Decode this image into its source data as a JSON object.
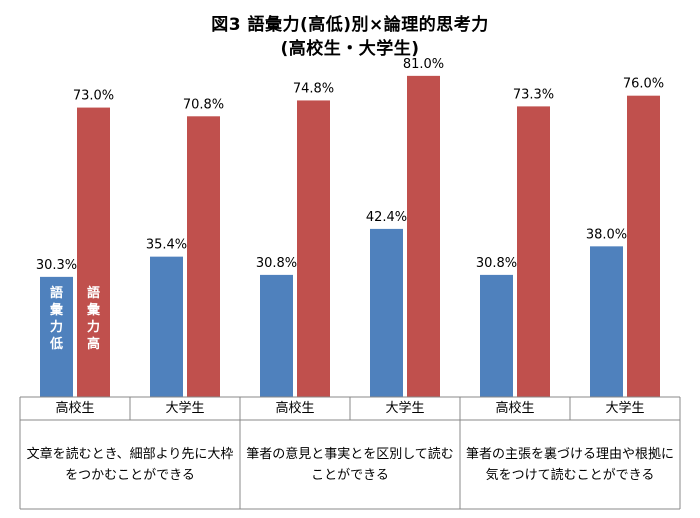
{
  "title": "図3 語彙力(高低)別×論理的思考力",
  "subtitle": "(高校生・大学生)",
  "chart_data": {
    "type": "bar",
    "title": "図3 語彙力(高低)別×論理的思考力",
    "subtitle": "(高校生・大学生)",
    "categories": [
      "高校生",
      "大学生",
      "高校生",
      "大学生",
      "高校生",
      "大学生"
    ],
    "groups": [
      "文章を読むとき、細部より先に大枠をつかむことができる",
      "筆者の意見と事実とを区別して読むことができる",
      "筆者の主張を裏づける理由や根拠に気をつけて読むことができる"
    ],
    "series": [
      {
        "name": "語彙力 低",
        "color": "#4f81bd",
        "values": [
          30.3,
          35.4,
          30.8,
          42.4,
          30.8,
          38.0
        ]
      },
      {
        "name": "語彙力 高",
        "color": "#c0504d",
        "values": [
          73.0,
          70.8,
          74.8,
          81.0,
          73.3,
          76.0
        ]
      }
    ],
    "value_labels": {
      "low": [
        "30.3%",
        "35.4%",
        "30.8%",
        "42.4%",
        "30.8%",
        "38.0%"
      ],
      "high": [
        "73.0%",
        "70.8%",
        "74.8%",
        "81.0%",
        "73.3%",
        "76.0%"
      ]
    },
    "ylim": [
      0,
      85
    ],
    "grid": false
  },
  "inline_labels": {
    "low": "語彙力 低",
    "high": "語彙力 高"
  }
}
